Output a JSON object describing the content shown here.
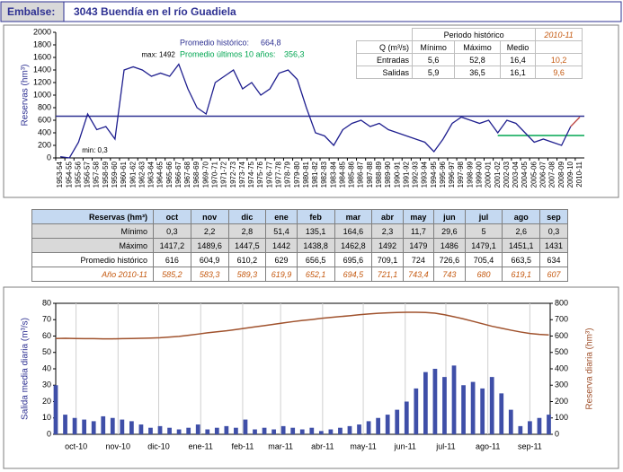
{
  "header": {
    "label": "Embalse:",
    "title": "3043 Buendía en el río Guadiela"
  },
  "chart_data": [
    {
      "type": "line",
      "ylabel": "Reservas (hm³)",
      "color": "#1f1f8f",
      "highlight_color": "#c0504d",
      "categories": [
        "1953-54",
        "1954-55",
        "1955-56",
        "1956-57",
        "1957-58",
        "1958-59",
        "1959-60",
        "1960-61",
        "1961-62",
        "1962-63",
        "1963-64",
        "1964-65",
        "1965-66",
        "1966-67",
        "1967-68",
        "1968-69",
        "1969-70",
        "1970-71",
        "1971-72",
        "1972-73",
        "1973-74",
        "1974-75",
        "1975-76",
        "1976-77",
        "1977-78",
        "1978-79",
        "1979-80",
        "1980-81",
        "1981-82",
        "1982-83",
        "1983-84",
        "1984-85",
        "1985-86",
        "1986-87",
        "1987-88",
        "1988-89",
        "1989-90",
        "1990-91",
        "1991-92",
        "1992-93",
        "1993-94",
        "1994-95",
        "1995-96",
        "1996-97",
        "1997-98",
        "1998-99",
        "1999-00",
        "2000-01",
        "2001-02",
        "2002-03",
        "2003-04",
        "2004-05",
        "2005-06",
        "2006-07",
        "2007-08",
        "2008-09",
        "2009-10",
        "2010-11"
      ],
      "values": [
        20,
        0.3,
        250,
        700,
        450,
        500,
        300,
        1400,
        1450,
        1400,
        1300,
        1350,
        1300,
        1492,
        1100,
        800,
        700,
        1200,
        1300,
        1400,
        1100,
        1200,
        1000,
        1100,
        1350,
        1400,
        1250,
        800,
        400,
        350,
        200,
        450,
        550,
        600,
        500,
        550,
        450,
        400,
        350,
        300,
        250,
        100,
        300,
        550,
        650,
        600,
        550,
        600,
        400,
        600,
        550,
        400,
        250,
        300,
        250,
        200,
        500,
        650
      ],
      "ylim": [
        0,
        2000
      ],
      "yticks": [
        0,
        200,
        400,
        600,
        800,
        1000,
        1200,
        1400,
        1600,
        1800,
        2000
      ],
      "annotations": [
        {
          "text": "max: 1492"
        },
        {
          "text": "min: 0,3"
        }
      ],
      "reference_lines": [
        {
          "label": "Promedio histórico:",
          "value": 664.8,
          "value_label": "664,8",
          "color": "#2e3192"
        },
        {
          "label": "Promedio últimos 10 años:",
          "value": 356.3,
          "value_label": "356,3",
          "color": "#00a651"
        }
      ]
    },
    {
      "type": "bar",
      "ylabel": "Salida media diaria (m³/s)",
      "y2label": "Reserva diaria (hm³)",
      "grid": "x",
      "x": [
        0,
        7,
        14,
        21,
        28,
        35,
        42,
        49,
        56,
        63,
        70,
        77,
        84,
        91,
        98,
        105,
        112,
        119,
        126,
        133,
        140,
        147,
        154,
        161,
        168,
        175,
        182,
        189,
        196,
        203,
        210,
        217,
        224,
        231,
        238,
        245,
        252,
        259,
        266,
        273,
        280,
        287,
        294,
        301,
        308,
        315,
        322,
        329,
        336,
        343,
        350,
        357,
        364
      ],
      "xlim": [
        0,
        365
      ],
      "xticks": [
        {
          "value": 15,
          "label": "oct-10"
        },
        {
          "value": 46,
          "label": "nov-10"
        },
        {
          "value": 76,
          "label": "dic-10"
        },
        {
          "value": 107,
          "label": "ene-11"
        },
        {
          "value": 138,
          "label": "feb-11"
        },
        {
          "value": 166,
          "label": "mar-11"
        },
        {
          "value": 197,
          "label": "abr-11"
        },
        {
          "value": 227,
          "label": "may-11"
        },
        {
          "value": 258,
          "label": "jun-11"
        },
        {
          "value": 288,
          "label": "jul-11"
        },
        {
          "value": 319,
          "label": "ago-11"
        },
        {
          "value": 350,
          "label": "sep-11"
        }
      ],
      "ylim": [
        0,
        80
      ],
      "yticks": [
        0,
        10,
        20,
        30,
        40,
        50,
        60,
        70,
        80
      ],
      "y2lim": [
        0,
        800
      ],
      "y2ticks": [
        0,
        100,
        200,
        300,
        400,
        500,
        600,
        700,
        800
      ],
      "bars": {
        "color": "#3f4fa8",
        "values": [
          30,
          12,
          10,
          9,
          8,
          11,
          10,
          9,
          8,
          6,
          4,
          5,
          4,
          3,
          4,
          6,
          3,
          4,
          5,
          4,
          9,
          3,
          4,
          3,
          5,
          4,
          3,
          4,
          2,
          3,
          4,
          5,
          6,
          8,
          10,
          12,
          15,
          20,
          28,
          38,
          40,
          35,
          42,
          30,
          32,
          28,
          35,
          25,
          15,
          5,
          8,
          10,
          12
        ]
      },
      "line": {
        "color": "#a0522d",
        "axis": "y2",
        "values": [
          585,
          586,
          585,
          584,
          584,
          583,
          583,
          584,
          585,
          586,
          588,
          590,
          594,
          598,
          605,
          612,
          620,
          626,
          632,
          640,
          648,
          656,
          664,
          672,
          680,
          688,
          695,
          701,
          708,
          714,
          719,
          724,
          730,
          735,
          739,
          742,
          744,
          745,
          745,
          744,
          740,
          730,
          718,
          705,
          690,
          675,
          660,
          648,
          636,
          625,
          616,
          610,
          607
        ]
      }
    }
  ],
  "inset_table": {
    "title": "Periodo histórico",
    "current": "2010-11",
    "columns": [
      "Q (m³/s)",
      "Mínimo",
      "Máximo",
      "Medio"
    ],
    "rows": [
      [
        "Entradas",
        "5,6",
        "52,8",
        "16,4",
        "10,2"
      ],
      [
        "Salidas",
        "5,9",
        "36,5",
        "16,1",
        "9,6"
      ]
    ]
  },
  "table": {
    "columns": [
      "Reservas (hm³)",
      "oct",
      "nov",
      "dic",
      "ene",
      "feb",
      "mar",
      "abr",
      "may",
      "jun",
      "jul",
      "ago",
      "sep"
    ],
    "rows": [
      [
        "Mínimo",
        "0,3",
        "2,2",
        "2,8",
        "51,4",
        "135,1",
        "164,6",
        "2,3",
        "11,7",
        "29,6",
        "5",
        "2,6",
        "0,3"
      ],
      [
        "Máximo",
        "1417,2",
        "1489,6",
        "1447,5",
        "1442",
        "1438,8",
        "1462,8",
        "1492",
        "1479",
        "1486",
        "1479,1",
        "1451,1",
        "1431"
      ],
      [
        "Promedio histórico",
        "616",
        "604,9",
        "610,2",
        "629",
        "656,5",
        "695,6",
        "709,1",
        "724",
        "726,6",
        "705,4",
        "663,5",
        "634"
      ],
      [
        "Año 2010-11",
        "585,2",
        "583,3",
        "589,3",
        "619,9",
        "652,1",
        "694,5",
        "721,1",
        "743,4",
        "743",
        "680",
        "619,1",
        "607"
      ]
    ]
  }
}
